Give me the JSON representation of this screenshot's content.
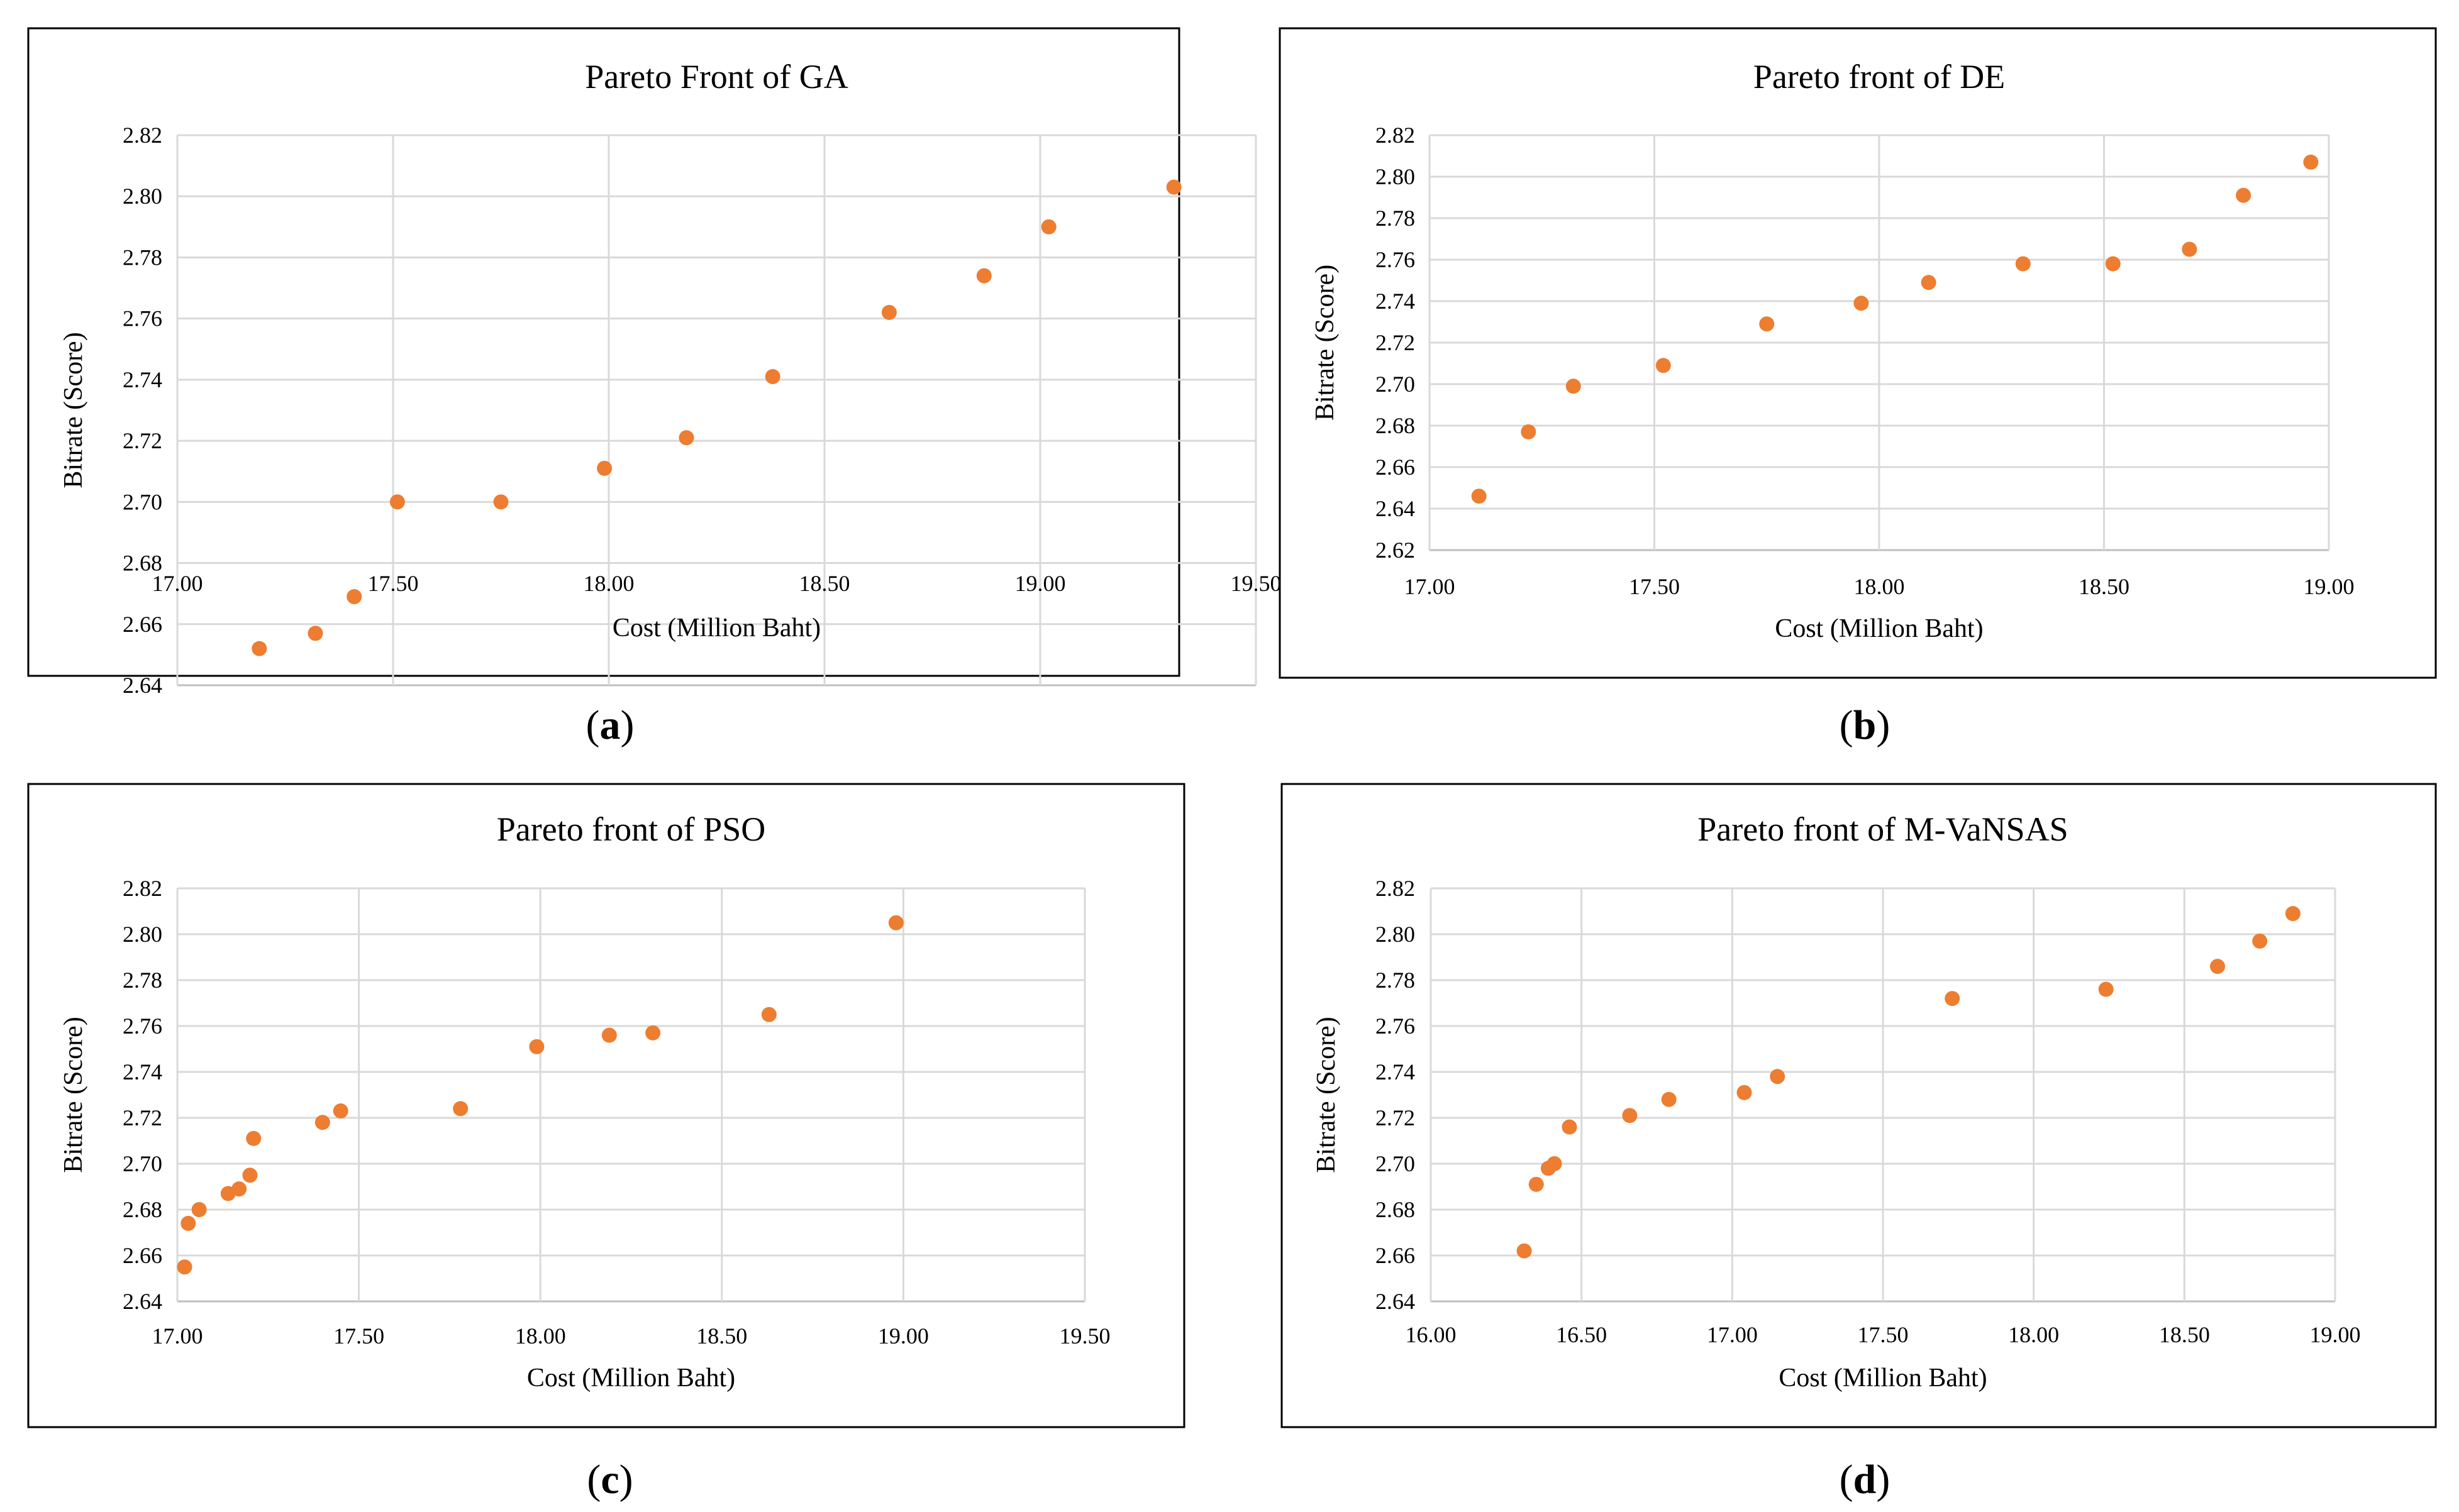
{
  "colors": {
    "point": "#ed7d31",
    "frame": "#000000",
    "grid": "#d9d9d9"
  },
  "chart_data": [
    {
      "type": "scatter",
      "title": "Pareto Front of GA",
      "xlabel": "Cost (Million Baht)",
      "ylabel": "Bitrate (Score)",
      "panel_label": "a",
      "xlim": [
        17.0,
        19.5
      ],
      "ylim": [
        2.64,
        2.82
      ],
      "x_ticks": [
        "17.00",
        "17.50",
        "18.00",
        "18.50",
        "19.00",
        "19.50"
      ],
      "y_ticks": [
        "2.64",
        "2.66",
        "2.68",
        "2.70",
        "2.72",
        "2.74",
        "2.76",
        "2.78",
        "2.80",
        "2.82"
      ],
      "points": [
        {
          "x": 17.19,
          "y": 2.652
        },
        {
          "x": 17.32,
          "y": 2.657
        },
        {
          "x": 17.41,
          "y": 2.669
        },
        {
          "x": 17.51,
          "y": 2.7
        },
        {
          "x": 17.75,
          "y": 2.7
        },
        {
          "x": 17.99,
          "y": 2.711
        },
        {
          "x": 18.18,
          "y": 2.721
        },
        {
          "x": 18.38,
          "y": 2.741
        },
        {
          "x": 18.65,
          "y": 2.762
        },
        {
          "x": 18.87,
          "y": 2.774
        },
        {
          "x": 19.02,
          "y": 2.79
        },
        {
          "x": 19.31,
          "y": 2.803
        }
      ]
    },
    {
      "type": "scatter",
      "title": "Pareto front of DE",
      "xlabel": "Cost (Million Baht)",
      "ylabel": "Bitrate (Score)",
      "panel_label": "b",
      "xlim": [
        17.0,
        19.0
      ],
      "ylim": [
        2.62,
        2.82
      ],
      "x_ticks": [
        "17.00",
        "17.50",
        "18.00",
        "18.50",
        "19.00"
      ],
      "y_ticks": [
        "2.62",
        "2.64",
        "2.66",
        "2.68",
        "2.70",
        "2.72",
        "2.74",
        "2.76",
        "2.78",
        "2.80",
        "2.82"
      ],
      "points": [
        {
          "x": 17.11,
          "y": 2.646
        },
        {
          "x": 17.22,
          "y": 2.677
        },
        {
          "x": 17.32,
          "y": 2.699
        },
        {
          "x": 17.52,
          "y": 2.709
        },
        {
          "x": 17.75,
          "y": 2.729
        },
        {
          "x": 17.96,
          "y": 2.739
        },
        {
          "x": 18.11,
          "y": 2.749
        },
        {
          "x": 18.32,
          "y": 2.758
        },
        {
          "x": 18.52,
          "y": 2.758
        },
        {
          "x": 18.69,
          "y": 2.765
        },
        {
          "x": 18.81,
          "y": 2.791
        },
        {
          "x": 18.96,
          "y": 2.807
        }
      ]
    },
    {
      "type": "scatter",
      "title": "Pareto front of PSO",
      "xlabel": "Cost (Million Baht)",
      "ylabel": "Bitrate (Score)",
      "panel_label": "c",
      "xlim": [
        17.0,
        19.5
      ],
      "ylim": [
        2.64,
        2.82
      ],
      "x_ticks": [
        "17.00",
        "17.50",
        "18.00",
        "18.50",
        "19.00",
        "19.50"
      ],
      "y_ticks": [
        "2.64",
        "2.66",
        "2.68",
        "2.70",
        "2.72",
        "2.74",
        "2.76",
        "2.78",
        "2.80",
        "2.82"
      ],
      "points": [
        {
          "x": 17.02,
          "y": 2.655
        },
        {
          "x": 17.03,
          "y": 2.674
        },
        {
          "x": 17.06,
          "y": 2.68
        },
        {
          "x": 17.14,
          "y": 2.687
        },
        {
          "x": 17.17,
          "y": 2.689
        },
        {
          "x": 17.2,
          "y": 2.695
        },
        {
          "x": 17.21,
          "y": 2.711
        },
        {
          "x": 17.4,
          "y": 2.718
        },
        {
          "x": 17.45,
          "y": 2.723
        },
        {
          "x": 17.78,
          "y": 2.724
        },
        {
          "x": 17.99,
          "y": 2.751
        },
        {
          "x": 18.19,
          "y": 2.756
        },
        {
          "x": 18.31,
          "y": 2.757
        },
        {
          "x": 18.63,
          "y": 2.765
        },
        {
          "x": 18.98,
          "y": 2.805
        }
      ]
    },
    {
      "type": "scatter",
      "title": "Pareto front of M-VaNSAS",
      "xlabel": "Cost (Million Baht)",
      "ylabel": "Bitrate (Score)",
      "panel_label": "d",
      "xlim": [
        16.0,
        19.0
      ],
      "ylim": [
        2.64,
        2.82
      ],
      "x_ticks": [
        "16.00",
        "16.50",
        "17.00",
        "17.50",
        "18.00",
        "18.50",
        "19.00"
      ],
      "y_ticks": [
        "2.64",
        "2.66",
        "2.68",
        "2.70",
        "2.72",
        "2.74",
        "2.76",
        "2.78",
        "2.80",
        "2.82"
      ],
      "points": [
        {
          "x": 16.31,
          "y": 2.662
        },
        {
          "x": 16.35,
          "y": 2.691
        },
        {
          "x": 16.39,
          "y": 2.698
        },
        {
          "x": 16.41,
          "y": 2.7
        },
        {
          "x": 16.46,
          "y": 2.716
        },
        {
          "x": 16.66,
          "y": 2.721
        },
        {
          "x": 16.79,
          "y": 2.728
        },
        {
          "x": 17.04,
          "y": 2.731
        },
        {
          "x": 17.15,
          "y": 2.738
        },
        {
          "x": 17.73,
          "y": 2.772
        },
        {
          "x": 18.24,
          "y": 2.776
        },
        {
          "x": 18.61,
          "y": 2.786
        },
        {
          "x": 18.75,
          "y": 2.797
        },
        {
          "x": 18.86,
          "y": 2.809
        }
      ]
    }
  ]
}
